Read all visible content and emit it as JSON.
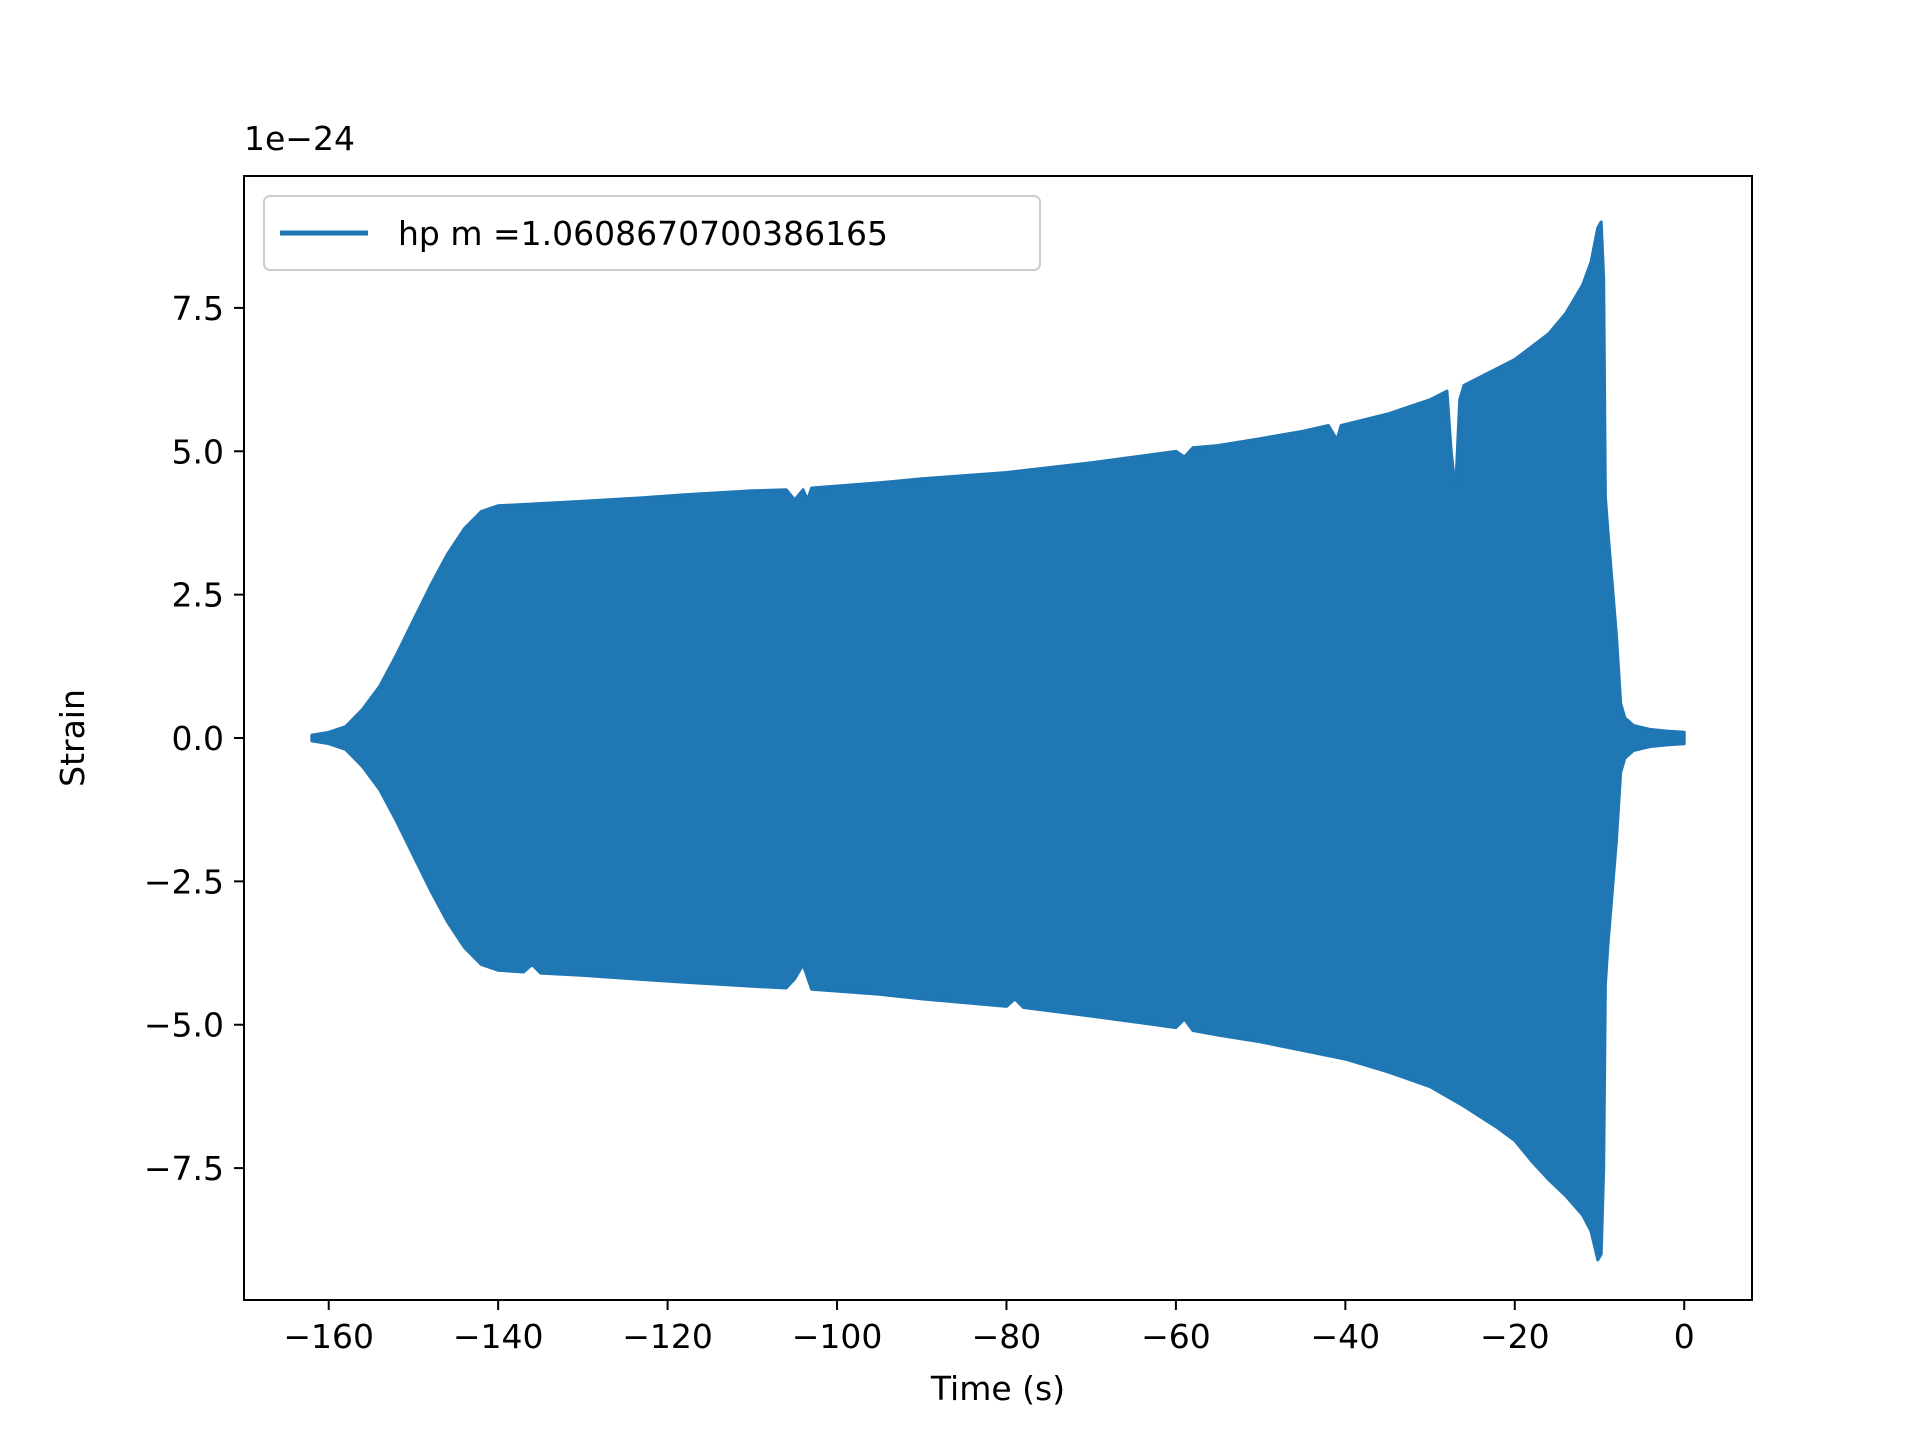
{
  "chart_data": {
    "type": "line",
    "title": "",
    "xlabel": "Time (s)",
    "ylabel": "Strain",
    "y_offset_text": "1e−24",
    "y_scale_factor": 1e-24,
    "xlim": [
      -170,
      8
    ],
    "ylim": [
      -9.8,
      9.8
    ],
    "x_ticks": [
      -160,
      -140,
      -120,
      -100,
      -80,
      -60,
      -40,
      -20,
      0
    ],
    "x_tick_labels": [
      "−160",
      "−140",
      "−120",
      "−100",
      "−80",
      "−60",
      "−40",
      "−20",
      "0"
    ],
    "y_ticks": [
      -7.5,
      -5.0,
      -2.5,
      0.0,
      2.5,
      5.0,
      7.5
    ],
    "y_tick_labels": [
      "−7.5",
      "−5.0",
      "−2.5",
      "0.0",
      "2.5",
      "5.0",
      "7.5"
    ],
    "grid": false,
    "legend_position": "top-left",
    "series": [
      {
        "name": "hp m =1.0608670700386165",
        "color": "#1f77b4",
        "envelope_upper": [
          [
            -162.0,
            0.05
          ],
          [
            -160.0,
            0.1
          ],
          [
            -158.0,
            0.2
          ],
          [
            -156.0,
            0.5
          ],
          [
            -154.0,
            0.9
          ],
          [
            -152.0,
            1.45
          ],
          [
            -150.0,
            2.05
          ],
          [
            -148.0,
            2.65
          ],
          [
            -146.0,
            3.2
          ],
          [
            -144.0,
            3.65
          ],
          [
            -142.0,
            3.95
          ],
          [
            -140.0,
            4.05
          ],
          [
            -136.0,
            4.08
          ],
          [
            -130.0,
            4.13
          ],
          [
            -124.0,
            4.18
          ],
          [
            -118.0,
            4.24
          ],
          [
            -110.0,
            4.31
          ],
          [
            -106.0,
            4.33
          ],
          [
            -105.0,
            4.15
          ],
          [
            -104.0,
            4.33
          ],
          [
            -103.5,
            4.15
          ],
          [
            -103.0,
            4.36
          ],
          [
            -95.0,
            4.45
          ],
          [
            -90.0,
            4.52
          ],
          [
            -80.0,
            4.63
          ],
          [
            -70.0,
            4.8
          ],
          [
            -60.0,
            5.0
          ],
          [
            -59.0,
            4.9
          ],
          [
            -58.0,
            5.06
          ],
          [
            -55.0,
            5.1
          ],
          [
            -50.0,
            5.22
          ],
          [
            -45.0,
            5.35
          ],
          [
            -42.0,
            5.45
          ],
          [
            -41.0,
            5.2
          ],
          [
            -40.5,
            5.45
          ],
          [
            -35.0,
            5.65
          ],
          [
            -30.0,
            5.9
          ],
          [
            -28.0,
            6.05
          ],
          [
            -27.5,
            5.0
          ],
          [
            -27.0,
            4.3
          ],
          [
            -26.5,
            5.9
          ],
          [
            -26.0,
            6.15
          ],
          [
            -24.0,
            6.3
          ],
          [
            -20.0,
            6.6
          ],
          [
            -16.0,
            7.05
          ],
          [
            -14.0,
            7.4
          ],
          [
            -12.0,
            7.9
          ],
          [
            -11.0,
            8.3
          ],
          [
            -10.2,
            8.9
          ],
          [
            -9.8,
            9.0
          ],
          [
            -9.5,
            8.0
          ],
          [
            -9.3,
            4.2
          ],
          [
            -9.0,
            3.6
          ],
          [
            -8.0,
            1.8
          ],
          [
            -7.5,
            0.6
          ],
          [
            -7.0,
            0.35
          ],
          [
            -6.0,
            0.22
          ],
          [
            -4.0,
            0.15
          ],
          [
            -2.0,
            0.12
          ],
          [
            0.0,
            0.1
          ]
        ],
        "envelope_lower": [
          [
            -162.0,
            -0.05
          ],
          [
            -160.0,
            -0.1
          ],
          [
            -158.0,
            -0.2
          ],
          [
            -156.0,
            -0.5
          ],
          [
            -154.0,
            -0.9
          ],
          [
            -152.0,
            -1.45
          ],
          [
            -150.0,
            -2.05
          ],
          [
            -148.0,
            -2.65
          ],
          [
            -146.0,
            -3.2
          ],
          [
            -144.0,
            -3.65
          ],
          [
            -142.0,
            -3.95
          ],
          [
            -140.0,
            -4.05
          ],
          [
            -137.0,
            -4.08
          ],
          [
            -136.0,
            -3.95
          ],
          [
            -135.0,
            -4.1
          ],
          [
            -130.0,
            -4.14
          ],
          [
            -124.0,
            -4.2
          ],
          [
            -118.0,
            -4.26
          ],
          [
            -110.0,
            -4.33
          ],
          [
            -106.0,
            -4.36
          ],
          [
            -105.0,
            -4.2
          ],
          [
            -104.0,
            -3.95
          ],
          [
            -103.0,
            -4.38
          ],
          [
            -95.0,
            -4.47
          ],
          [
            -90.0,
            -4.55
          ],
          [
            -80.0,
            -4.68
          ],
          [
            -79.0,
            -4.55
          ],
          [
            -78.0,
            -4.7
          ],
          [
            -70.0,
            -4.85
          ],
          [
            -60.0,
            -5.05
          ],
          [
            -59.0,
            -4.9
          ],
          [
            -58.0,
            -5.1
          ],
          [
            -55.0,
            -5.18
          ],
          [
            -50.0,
            -5.3
          ],
          [
            -45.0,
            -5.45
          ],
          [
            -40.0,
            -5.6
          ],
          [
            -35.0,
            -5.82
          ],
          [
            -30.0,
            -6.08
          ],
          [
            -26.0,
            -6.42
          ],
          [
            -22.0,
            -6.8
          ],
          [
            -20.0,
            -7.02
          ],
          [
            -18.0,
            -7.38
          ],
          [
            -16.0,
            -7.7
          ],
          [
            -14.0,
            -7.98
          ],
          [
            -12.0,
            -8.32
          ],
          [
            -11.0,
            -8.6
          ],
          [
            -10.2,
            -9.1
          ],
          [
            -9.8,
            -9.0
          ],
          [
            -9.5,
            -7.5
          ],
          [
            -9.3,
            -4.3
          ],
          [
            -9.0,
            -3.6
          ],
          [
            -8.0,
            -1.8
          ],
          [
            -7.5,
            -0.6
          ],
          [
            -7.0,
            -0.35
          ],
          [
            -6.0,
            -0.22
          ],
          [
            -4.0,
            -0.15
          ],
          [
            -2.0,
            -0.12
          ],
          [
            0.0,
            -0.1
          ]
        ]
      }
    ]
  }
}
